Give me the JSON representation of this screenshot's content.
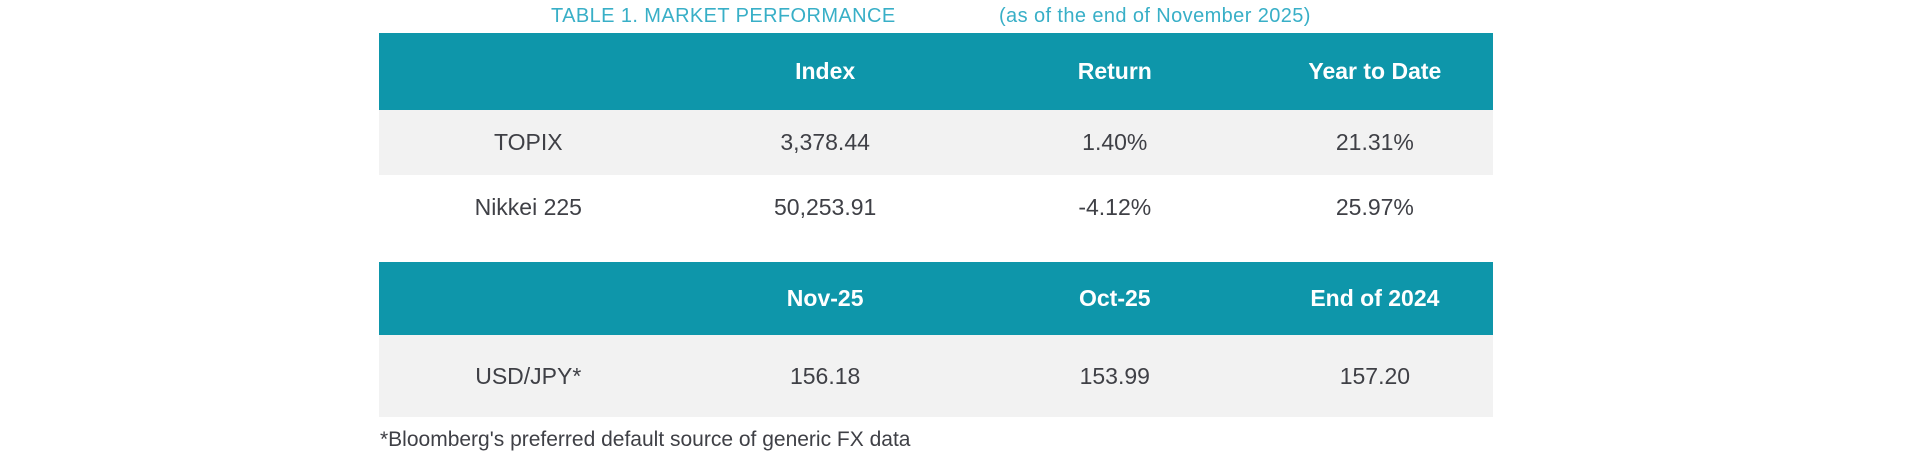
{
  "title": {
    "main": "TABLE 1. MARKET PERFORMANCE",
    "subtitle": "(as of the end of November 2025)"
  },
  "colors": {
    "header_bg": "#0e96aa",
    "title_text": "#38afc7",
    "row_alt_bg": "#f2f2f2",
    "row_bg": "#ffffff",
    "body_text": "#3f4046",
    "header_text": "#ffffff"
  },
  "table1": {
    "headers": [
      "",
      "Index",
      "Return",
      "Year to Date"
    ],
    "rows": [
      {
        "label": "TOPIX",
        "values": [
          "3,378.44",
          "1.40%",
          "21.31%"
        ]
      },
      {
        "label": "Nikkei 225",
        "values": [
          "50,253.91",
          "-4.12%",
          "25.97%"
        ]
      }
    ]
  },
  "table2": {
    "headers": [
      "",
      "Nov-25",
      "Oct-25",
      "End of 2024"
    ],
    "rows": [
      {
        "label": "USD/JPY*",
        "values": [
          "156.18",
          "153.99",
          "157.20"
        ]
      }
    ]
  },
  "footnote": "*Bloomberg's preferred default source of generic FX data"
}
